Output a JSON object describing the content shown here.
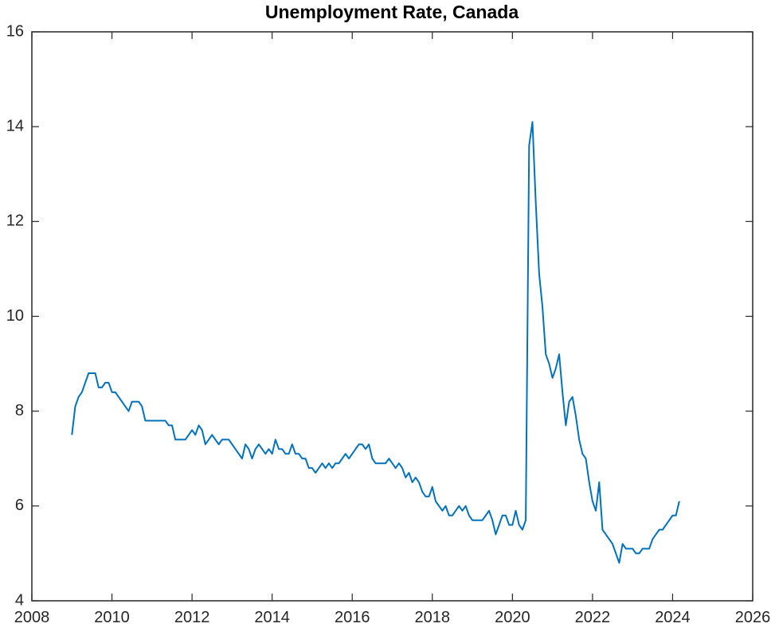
{
  "chart_data": {
    "type": "line",
    "title": "Unemployment Rate, Canada",
    "color": "#0072bd",
    "xlim": [
      2008,
      2026
    ],
    "xticks": [
      2008,
      2010,
      2012,
      2014,
      2016,
      2018,
      2020,
      2022,
      2024,
      2026
    ],
    "ylim": [
      4,
      16
    ],
    "yticks": [
      4,
      6,
      8,
      10,
      12,
      14,
      16
    ],
    "x": [
      2009,
      2009.083,
      2009.167,
      2009.25,
      2009.333,
      2009.417,
      2009.5,
      2009.583,
      2009.667,
      2009.75,
      2009.833,
      2009.917,
      2010,
      2010.083,
      2010.167,
      2010.25,
      2010.333,
      2010.417,
      2010.5,
      2010.583,
      2010.667,
      2010.75,
      2010.833,
      2010.917,
      2011,
      2011.083,
      2011.167,
      2011.25,
      2011.333,
      2011.417,
      2011.5,
      2011.583,
      2011.667,
      2011.75,
      2011.833,
      2011.917,
      2012,
      2012.083,
      2012.167,
      2012.25,
      2012.333,
      2012.417,
      2012.5,
      2012.583,
      2012.667,
      2012.75,
      2012.833,
      2012.917,
      2013,
      2013.083,
      2013.167,
      2013.25,
      2013.333,
      2013.417,
      2013.5,
      2013.583,
      2013.667,
      2013.75,
      2013.833,
      2013.917,
      2014,
      2014.083,
      2014.167,
      2014.25,
      2014.333,
      2014.417,
      2014.5,
      2014.583,
      2014.667,
      2014.75,
      2014.833,
      2014.917,
      2015,
      2015.083,
      2015.167,
      2015.25,
      2015.333,
      2015.417,
      2015.5,
      2015.583,
      2015.667,
      2015.75,
      2015.833,
      2015.917,
      2016,
      2016.083,
      2016.167,
      2016.25,
      2016.333,
      2016.417,
      2016.5,
      2016.583,
      2016.667,
      2016.75,
      2016.833,
      2016.917,
      2017,
      2017.083,
      2017.167,
      2017.25,
      2017.333,
      2017.417,
      2017.5,
      2017.583,
      2017.667,
      2017.75,
      2017.833,
      2017.917,
      2018,
      2018.083,
      2018.167,
      2018.25,
      2018.333,
      2018.417,
      2018.5,
      2018.583,
      2018.667,
      2018.75,
      2018.833,
      2018.917,
      2019,
      2019.083,
      2019.167,
      2019.25,
      2019.333,
      2019.417,
      2019.5,
      2019.583,
      2019.667,
      2019.75,
      2019.833,
      2019.917,
      2020,
      2020.083,
      2020.167,
      2020.25,
      2020.333,
      2020.417,
      2020.5,
      2020.583,
      2020.667,
      2020.75,
      2020.833,
      2020.917,
      2021,
      2021.083,
      2021.167,
      2021.25,
      2021.333,
      2021.417,
      2021.5,
      2021.583,
      2021.667,
      2021.75,
      2021.833,
      2021.917,
      2022,
      2022.083,
      2022.167,
      2022.25,
      2022.333,
      2022.417,
      2022.5,
      2022.583,
      2022.667,
      2022.75,
      2022.833,
      2022.917,
      2023,
      2023.083,
      2023.167,
      2023.25,
      2023.333,
      2023.417,
      2023.5,
      2023.583,
      2023.667,
      2023.75,
      2023.833,
      2023.917,
      2024,
      2024.083,
      2024.167
    ],
    "values": [
      7.5,
      8.1,
      8.3,
      8.4,
      8.6,
      8.8,
      8.8,
      8.8,
      8.5,
      8.5,
      8.6,
      8.6,
      8.4,
      8.4,
      8.3,
      8.2,
      8.1,
      8.0,
      8.2,
      8.2,
      8.2,
      8.1,
      7.8,
      7.8,
      7.8,
      7.8,
      7.8,
      7.8,
      7.8,
      7.7,
      7.7,
      7.4,
      7.4,
      7.4,
      7.4,
      7.5,
      7.6,
      7.5,
      7.7,
      7.6,
      7.3,
      7.4,
      7.5,
      7.4,
      7.3,
      7.4,
      7.4,
      7.4,
      7.3,
      7.2,
      7.1,
      7.0,
      7.3,
      7.2,
      7.0,
      7.2,
      7.3,
      7.2,
      7.1,
      7.2,
      7.1,
      7.4,
      7.2,
      7.2,
      7.1,
      7.1,
      7.3,
      7.1,
      7.1,
      7.0,
      7.0,
      6.8,
      6.8,
      6.7,
      6.8,
      6.9,
      6.8,
      6.9,
      6.8,
      6.9,
      6.9,
      7.0,
      7.1,
      7.0,
      7.1,
      7.2,
      7.3,
      7.3,
      7.2,
      7.3,
      7.0,
      6.9,
      6.9,
      6.9,
      6.9,
      7.0,
      6.9,
      6.8,
      6.9,
      6.8,
      6.6,
      6.7,
      6.5,
      6.6,
      6.5,
      6.3,
      6.2,
      6.2,
      6.4,
      6.1,
      6.0,
      5.9,
      6.0,
      5.8,
      5.8,
      5.9,
      6.0,
      5.9,
      6.0,
      5.8,
      5.7,
      5.7,
      5.7,
      5.7,
      5.8,
      5.9,
      5.7,
      5.4,
      5.6,
      5.8,
      5.8,
      5.6,
      5.6,
      5.9,
      5.6,
      5.5,
      5.7,
      13.6,
      14.1,
      12.4,
      10.9,
      10.2,
      9.2,
      9.0,
      8.7,
      8.9,
      9.2,
      8.4,
      7.7,
      8.2,
      8.3,
      7.9,
      7.4,
      7.1,
      7.0,
      6.5,
      6.1,
      5.9,
      6.5,
      5.5,
      5.4,
      5.3,
      5.2,
      5.0,
      4.8,
      5.2,
      5.1,
      5.1,
      5.1,
      5.0,
      5.0,
      5.1,
      5.1,
      5.1,
      5.3,
      5.4,
      5.5,
      5.5,
      5.6,
      5.7,
      5.8,
      5.8,
      6.1
    ]
  }
}
